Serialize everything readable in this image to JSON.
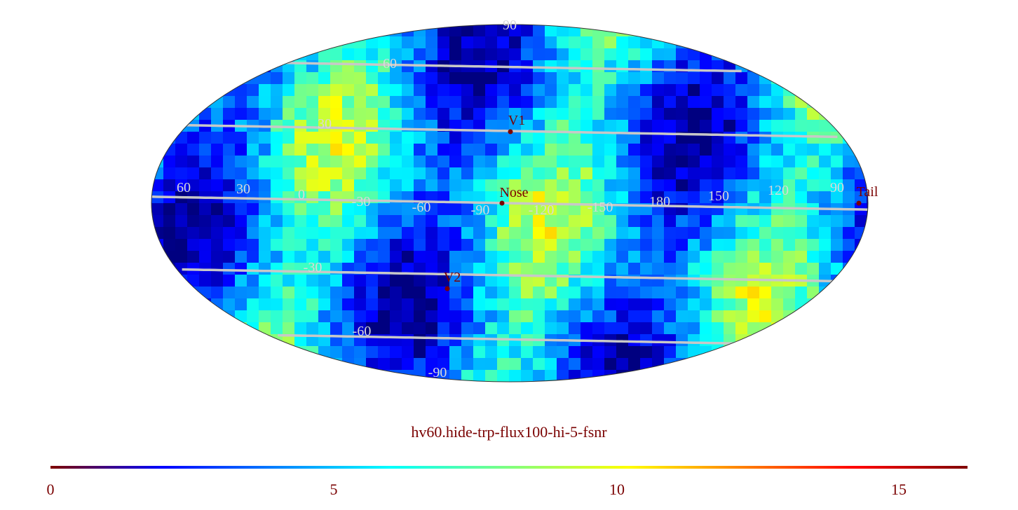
{
  "map": {
    "projection": "mollweide",
    "colormap": "jet",
    "longitude_labels": [
      "60",
      "30",
      "0",
      "-30",
      "-60",
      "-90",
      "-120",
      "-150",
      "180",
      "150",
      "120",
      "90"
    ],
    "latitude_labels": [
      "90",
      "60",
      "30",
      "-30",
      "-60",
      "-90"
    ],
    "markers": [
      {
        "label": "V1"
      },
      {
        "label": "Nose"
      },
      {
        "label": "V2"
      },
      {
        "label": "Tail"
      }
    ],
    "marker_color": "#7a0000",
    "grid_color": "#c8c8c8"
  },
  "title": "hv60.hide-trp-flux100-hi-5-fsnr",
  "colorbar": {
    "min": 0,
    "max": 16.2,
    "ticks": [
      "0",
      "5",
      "10",
      "15"
    ]
  }
}
